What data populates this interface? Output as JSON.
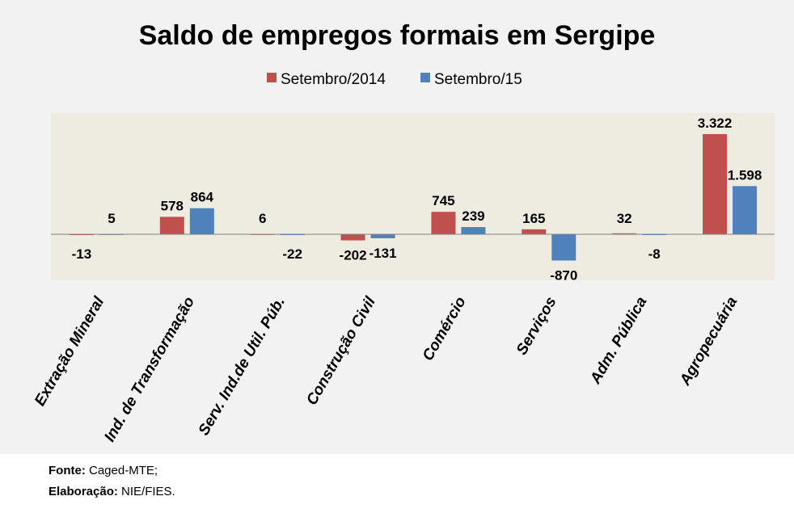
{
  "chart_data": {
    "type": "bar",
    "title": "Saldo de empregos formais em Sergipe",
    "categories": [
      "Extração Mineral",
      "Ind. de Transformação",
      "Serv. Ind.de Util. Púb.",
      "Construção Civil",
      "Comércio",
      "Serviços",
      "Adm. Pública",
      "Agropecuária"
    ],
    "series": [
      {
        "name": "Setembro/2014",
        "color": "#c0504d",
        "values": [
          -13,
          578,
          6,
          -202,
          745,
          165,
          32,
          3322
        ],
        "labels": [
          "-13",
          "578",
          "6",
          "-202",
          "745",
          "165",
          "32",
          "3.322"
        ]
      },
      {
        "name": "Setembro/15",
        "color": "#4f81bd",
        "values": [
          5,
          864,
          -22,
          -131,
          239,
          -870,
          -8,
          1598
        ],
        "labels": [
          "5",
          "864",
          "-22",
          "-131",
          "239",
          "-870",
          "-8",
          "1.598"
        ]
      }
    ],
    "ylim": [
      -1500,
      4100
    ],
    "legend": "top",
    "grid": false,
    "xlabel": "",
    "ylabel": ""
  },
  "footer": {
    "source_label": "Fonte:",
    "source_value": "Caged-MTE;",
    "credit_label": "Elaboração:",
    "credit_value": "NIE/FIES."
  }
}
